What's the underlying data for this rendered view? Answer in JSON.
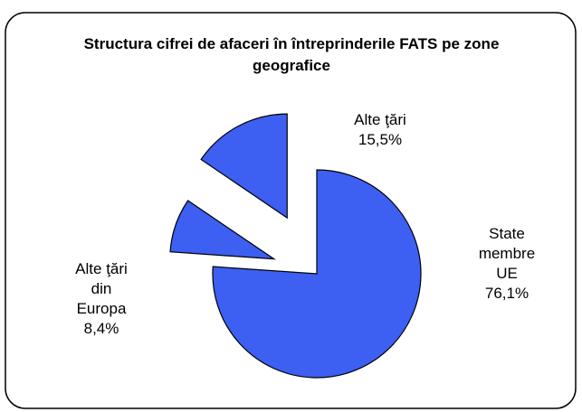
{
  "chart_data": {
    "type": "pie",
    "title": "Structura cifrei de afaceri în întreprinderile FATS pe zone geografice",
    "categories": [
      "State membre UE",
      "Alte ţări din Europa",
      "Alte ţări"
    ],
    "values": [
      76.1,
      8.4,
      15.5
    ],
    "value_labels": [
      "76,1%",
      "8,4%",
      "15,5%"
    ],
    "color": "#3d5ff2"
  }
}
